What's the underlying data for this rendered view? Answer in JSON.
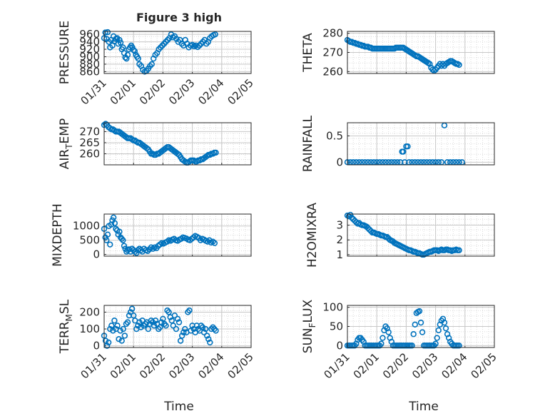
{
  "figure": {
    "title": "Figure 3 high",
    "xlabel": "Time"
  },
  "chart_data": [
    {
      "type": "scatter",
      "panel": "pressure",
      "ylabel": "PRESSURE",
      "yticks": [
        "960",
        "940",
        "920",
        "900",
        "880",
        "860"
      ],
      "ylim": [
        855,
        968
      ],
      "xlim": [
        0,
        5
      ],
      "xticks": [
        "01/31",
        "02/01",
        "02/02",
        "02/03",
        "02/04",
        "02/05"
      ],
      "x": [
        0.0,
        0.04,
        0.08,
        0.12,
        0.16,
        0.2,
        0.24,
        0.28,
        0.32,
        0.36,
        0.4,
        0.44,
        0.48,
        0.52,
        0.56,
        0.6,
        0.64,
        0.68,
        0.72,
        0.76,
        0.8,
        0.84,
        0.88,
        0.92,
        0.96,
        1.0,
        1.04,
        1.08,
        1.12,
        1.16,
        1.2,
        1.26,
        1.32,
        1.38,
        1.44,
        1.5,
        1.56,
        1.62,
        1.68,
        1.74,
        1.8,
        1.86,
        1.92,
        1.98,
        2.04,
        2.1,
        2.16,
        2.22,
        2.28,
        2.34,
        2.4,
        2.46,
        2.52,
        2.58,
        2.64,
        2.7,
        2.76,
        2.82,
        2.88,
        2.94,
        3.0,
        3.06,
        3.12,
        3.18,
        3.24,
        3.3,
        3.36,
        3.42,
        3.48,
        3.54,
        3.6,
        3.66,
        3.72,
        3.78
      ],
      "y": [
        950,
        965,
        948,
        966,
        940,
        925,
        945,
        930,
        955,
        942,
        948,
        950,
        935,
        945,
        938,
        920,
        925,
        910,
        898,
        895,
        905,
        920,
        925,
        930,
        925,
        918,
        915,
        905,
        900,
        895,
        880,
        875,
        865,
        860,
        862,
        868,
        875,
        880,
        895,
        905,
        910,
        920,
        925,
        930,
        935,
        940,
        945,
        950,
        960,
        952,
        955,
        948,
        940,
        945,
        935,
        930,
        945,
        935,
        925,
        930,
        932,
        928,
        930,
        926,
        930,
        935,
        940,
        945,
        935,
        940,
        950,
        955,
        958,
        960
      ]
    },
    {
      "type": "scatter",
      "panel": "theta",
      "ylabel": "THETA",
      "yticks": [
        "280",
        "270",
        "260"
      ],
      "ylim": [
        259,
        281
      ],
      "xlim": [
        0,
        5
      ],
      "x": [
        0.0,
        0.05,
        0.1,
        0.15,
        0.2,
        0.25,
        0.3,
        0.35,
        0.4,
        0.45,
        0.5,
        0.55,
        0.6,
        0.65,
        0.7,
        0.75,
        0.8,
        0.85,
        0.9,
        0.95,
        1.0,
        1.05,
        1.1,
        1.15,
        1.2,
        1.25,
        1.3,
        1.35,
        1.4,
        1.45,
        1.5,
        1.55,
        1.6,
        1.65,
        1.7,
        1.75,
        1.8,
        1.85,
        1.9,
        1.95,
        2.0,
        2.05,
        2.1,
        2.15,
        2.2,
        2.25,
        2.3,
        2.35,
        2.4,
        2.45,
        2.5,
        2.55,
        2.6,
        2.65,
        2.7,
        2.75,
        2.8,
        2.85,
        2.9,
        2.95,
        3.0,
        3.05,
        3.1,
        3.15,
        3.2,
        3.25,
        3.3,
        3.35,
        3.4,
        3.45,
        3.5,
        3.55,
        3.6,
        3.65,
        3.7,
        3.75,
        3.8
      ],
      "y": [
        276.5,
        276,
        275.5,
        275.5,
        275,
        275,
        274.5,
        274.5,
        274,
        274,
        273.5,
        273.5,
        273,
        273,
        273,
        272.5,
        272.5,
        272,
        272,
        272,
        272,
        272,
        272,
        272,
        272,
        272,
        272,
        272,
        272,
        272,
        272,
        272,
        272,
        272.5,
        272.5,
        272.5,
        272.5,
        272.5,
        272.5,
        272,
        271.5,
        271,
        270.5,
        270,
        269.5,
        269,
        268.5,
        268,
        268,
        267.5,
        267,
        266.5,
        266,
        265.5,
        265,
        264.5,
        264,
        262,
        261,
        260.5,
        261,
        262,
        263,
        264,
        263,
        264,
        263,
        264,
        264.5,
        265,
        265.5,
        265.5,
        265,
        264.5,
        264,
        264,
        263.5
      ]
    },
    {
      "type": "scatter",
      "panel": "air_temp",
      "ylabel_main": "AIR",
      "ylabel_sub": "T",
      "ylabel_tail": "EMP",
      "yticks": [
        "270",
        "265",
        "260"
      ],
      "ylim": [
        255,
        274
      ],
      "xlim": [
        0,
        5
      ],
      "x": [
        0.0,
        0.05,
        0.1,
        0.15,
        0.2,
        0.25,
        0.3,
        0.35,
        0.4,
        0.45,
        0.5,
        0.55,
        0.6,
        0.65,
        0.7,
        0.75,
        0.8,
        0.85,
        0.9,
        0.95,
        1.0,
        1.05,
        1.1,
        1.15,
        1.2,
        1.25,
        1.3,
        1.35,
        1.4,
        1.45,
        1.5,
        1.55,
        1.6,
        1.65,
        1.7,
        1.75,
        1.8,
        1.85,
        1.9,
        1.95,
        2.0,
        2.05,
        2.1,
        2.15,
        2.2,
        2.25,
        2.3,
        2.35,
        2.4,
        2.45,
        2.5,
        2.55,
        2.6,
        2.65,
        2.7,
        2.75,
        2.8,
        2.85,
        2.9,
        2.95,
        3.0,
        3.05,
        3.1,
        3.15,
        3.2,
        3.25,
        3.3,
        3.35,
        3.4,
        3.45,
        3.5,
        3.55,
        3.6,
        3.65,
        3.7,
        3.75,
        3.8
      ],
      "y": [
        273,
        273.5,
        273,
        272,
        271.5,
        271,
        271,
        270.5,
        270,
        270,
        270,
        269.5,
        269,
        268.5,
        268,
        267.5,
        267,
        267,
        267,
        266.5,
        266,
        266,
        265.5,
        265,
        265,
        264.5,
        264,
        263.5,
        263,
        262.5,
        262,
        261,
        260,
        260,
        259.5,
        259.5,
        260,
        260,
        260.5,
        261,
        261.5,
        262,
        262.5,
        263,
        263,
        262.5,
        262,
        261.5,
        261,
        260.5,
        260,
        259.5,
        258.5,
        257.5,
        257,
        256.5,
        256,
        256,
        256.5,
        257,
        257,
        257,
        256.5,
        256.5,
        257,
        257,
        257.5,
        257.5,
        258,
        258.5,
        259,
        259.5,
        259.5,
        260,
        260,
        260.5,
        260.5
      ]
    },
    {
      "type": "scatter",
      "panel": "rainfall",
      "ylabel": "RAINFALL",
      "yticks": [
        "0.5",
        "0"
      ],
      "ylim": [
        -0.05,
        0.75
      ],
      "xlim": [
        0,
        5
      ],
      "x": [
        0.0,
        0.1,
        0.2,
        0.3,
        0.4,
        0.5,
        0.6,
        0.7,
        0.8,
        0.9,
        1.0,
        1.1,
        1.2,
        1.3,
        1.4,
        1.5,
        1.6,
        1.7,
        1.8,
        1.86,
        1.9,
        1.95,
        2.0,
        2.05,
        2.1,
        2.2,
        2.3,
        2.4,
        2.5,
        2.6,
        2.7,
        2.8,
        2.9,
        3.0,
        3.1,
        3.2,
        3.3,
        3.4,
        3.5,
        3.6,
        3.7,
        3.8,
        3.9
      ],
      "y": [
        0,
        0,
        0,
        0,
        0,
        0,
        0,
        0,
        0,
        0,
        0,
        0,
        0,
        0,
        0,
        0,
        0,
        0,
        0,
        0.2,
        0.2,
        0,
        0.3,
        0.3,
        0,
        0,
        0,
        0,
        0,
        0,
        0,
        0,
        0,
        0,
        0,
        0,
        0.7,
        0,
        0,
        0,
        0,
        0,
        0
      ]
    },
    {
      "type": "scatter",
      "panel": "mixdepth",
      "ylabel": "MIXDEPTH",
      "yticks": [
        "1000",
        "500",
        "0"
      ],
      "ylim": [
        -60,
        1420
      ],
      "xlim": [
        0,
        5
      ],
      "x": [
        0.0,
        0.04,
        0.08,
        0.12,
        0.16,
        0.2,
        0.24,
        0.28,
        0.32,
        0.36,
        0.4,
        0.44,
        0.48,
        0.52,
        0.56,
        0.6,
        0.64,
        0.68,
        0.72,
        0.76,
        0.8,
        0.85,
        0.9,
        0.95,
        1.0,
        1.05,
        1.1,
        1.15,
        1.2,
        1.25,
        1.3,
        1.36,
        1.42,
        1.48,
        1.54,
        1.6,
        1.66,
        1.72,
        1.78,
        1.84,
        1.9,
        1.96,
        2.02,
        2.08,
        2.14,
        2.2,
        2.26,
        2.32,
        2.38,
        2.44,
        2.5,
        2.56,
        2.62,
        2.68,
        2.74,
        2.8,
        2.86,
        2.92,
        2.98,
        3.04,
        3.1,
        3.16,
        3.22,
        3.28,
        3.34,
        3.4,
        3.46,
        3.52,
        3.58,
        3.64,
        3.7,
        3.76
      ],
      "y": [
        900,
        600,
        500,
        700,
        1000,
        350,
        1050,
        1200,
        1300,
        1100,
        900,
        850,
        700,
        800,
        600,
        550,
        500,
        300,
        200,
        100,
        150,
        180,
        100,
        200,
        150,
        100,
        50,
        150,
        200,
        150,
        100,
        200,
        150,
        120,
        180,
        250,
        200,
        250,
        220,
        300,
        350,
        400,
        380,
        420,
        450,
        500,
        480,
        520,
        550,
        500,
        480,
        520,
        550,
        600,
        580,
        560,
        520,
        500,
        550,
        600,
        650,
        620,
        580,
        500,
        550,
        520,
        480,
        450,
        500,
        420,
        450,
        400
      ]
    },
    {
      "type": "scatter",
      "panel": "h2omixra",
      "ylabel": "H2OMIXRA",
      "yticks": [
        "3",
        "2",
        "1"
      ],
      "ylim": [
        0.9,
        3.75
      ],
      "xlim": [
        0,
        5
      ],
      "x": [
        0.0,
        0.05,
        0.1,
        0.15,
        0.2,
        0.25,
        0.3,
        0.35,
        0.4,
        0.45,
        0.5,
        0.55,
        0.6,
        0.65,
        0.7,
        0.75,
        0.8,
        0.85,
        0.9,
        0.95,
        1.0,
        1.05,
        1.1,
        1.15,
        1.2,
        1.25,
        1.3,
        1.35,
        1.4,
        1.45,
        1.5,
        1.55,
        1.6,
        1.65,
        1.7,
        1.75,
        1.8,
        1.85,
        1.9,
        1.95,
        2.0,
        2.05,
        2.1,
        2.15,
        2.2,
        2.25,
        2.3,
        2.35,
        2.4,
        2.45,
        2.5,
        2.55,
        2.6,
        2.65,
        2.7,
        2.75,
        2.8,
        2.85,
        2.9,
        2.95,
        3.0,
        3.05,
        3.1,
        3.15,
        3.2,
        3.25,
        3.3,
        3.35,
        3.4,
        3.45,
        3.5,
        3.55,
        3.6,
        3.65,
        3.7,
        3.75,
        3.8
      ],
      "y": [
        3.65,
        3.6,
        3.7,
        3.5,
        3.4,
        3.3,
        3.2,
        3.1,
        3.15,
        3.05,
        3.0,
        3.0,
        2.95,
        2.9,
        2.8,
        2.7,
        2.6,
        2.5,
        2.5,
        2.45,
        2.4,
        2.4,
        2.35,
        2.3,
        2.3,
        2.25,
        2.2,
        2.2,
        2.1,
        2.0,
        1.95,
        1.9,
        1.8,
        1.75,
        1.7,
        1.65,
        1.6,
        1.55,
        1.5,
        1.45,
        1.4,
        1.35,
        1.3,
        1.3,
        1.25,
        1.2,
        1.2,
        1.15,
        1.1,
        1.1,
        1.05,
        1.0,
        1.0,
        1.05,
        1.1,
        1.15,
        1.2,
        1.2,
        1.25,
        1.3,
        1.3,
        1.3,
        1.25,
        1.3,
        1.35,
        1.3,
        1.3,
        1.35,
        1.35,
        1.3,
        1.3,
        1.25,
        1.3,
        1.3,
        1.35,
        1.3,
        1.3
      ]
    },
    {
      "type": "scatter",
      "panel": "terr_msl",
      "ylabel_main": "TERR",
      "ylabel_sub": "M",
      "ylabel_tail": "SL",
      "yticks": [
        "200",
        "100",
        "0"
      ],
      "ylim": [
        -10,
        240
      ],
      "xlim": [
        0,
        5
      ],
      "xticks": [
        "01/31",
        "02/01",
        "02/02",
        "02/03",
        "02/04",
        "02/05"
      ],
      "x": [
        0.0,
        0.05,
        0.1,
        0.15,
        0.2,
        0.25,
        0.3,
        0.35,
        0.4,
        0.45,
        0.5,
        0.55,
        0.6,
        0.65,
        0.7,
        0.75,
        0.8,
        0.85,
        0.9,
        0.95,
        1.0,
        1.05,
        1.1,
        1.15,
        1.2,
        1.25,
        1.3,
        1.35,
        1.4,
        1.45,
        1.5,
        1.55,
        1.6,
        1.65,
        1.7,
        1.75,
        1.8,
        1.85,
        1.9,
        1.95,
        2.0,
        2.05,
        2.1,
        2.15,
        2.2,
        2.25,
        2.3,
        2.35,
        2.4,
        2.45,
        2.5,
        2.55,
        2.6,
        2.65,
        2.7,
        2.75,
        2.8,
        2.85,
        2.9,
        2.95,
        3.0,
        3.05,
        3.1,
        3.15,
        3.2,
        3.25,
        3.3,
        3.35,
        3.4,
        3.45,
        3.5,
        3.55,
        3.6,
        3.65,
        3.7,
        3.75,
        3.8
      ],
      "y": [
        60,
        30,
        0,
        20,
        100,
        120,
        90,
        150,
        100,
        120,
        40,
        90,
        30,
        100,
        60,
        130,
        140,
        180,
        200,
        220,
        180,
        150,
        100,
        120,
        140,
        110,
        150,
        120,
        130,
        140,
        100,
        130,
        150,
        140,
        120,
        150,
        130,
        100,
        110,
        140,
        160,
        130,
        120,
        210,
        200,
        170,
        150,
        120,
        180,
        100,
        160,
        140,
        30,
        60,
        80,
        100,
        80,
        200,
        210,
        90,
        120,
        100,
        80,
        120,
        100,
        90,
        120,
        110,
        80,
        100,
        60,
        40,
        20,
        100,
        110,
        100,
        90
      ]
    },
    {
      "type": "scatter",
      "panel": "sun_flux",
      "ylabel_main": "SUN",
      "ylabel_sub": "F",
      "ylabel_tail": "LUX",
      "yticks": [
        "100",
        "50",
        "0"
      ],
      "ylim": [
        -5,
        105
      ],
      "xlim": [
        0,
        5
      ],
      "xticks": [
        "01/31",
        "02/01",
        "02/02",
        "02/03",
        "02/04",
        "02/05"
      ],
      "x": [
        0.0,
        0.05,
        0.1,
        0.15,
        0.2,
        0.25,
        0.3,
        0.35,
        0.4,
        0.45,
        0.5,
        0.55,
        0.6,
        0.65,
        0.7,
        0.75,
        0.8,
        0.85,
        0.9,
        0.95,
        1.0,
        1.05,
        1.1,
        1.15,
        1.2,
        1.25,
        1.3,
        1.35,
        1.4,
        1.45,
        1.5,
        1.55,
        1.6,
        1.65,
        1.7,
        1.75,
        1.8,
        1.85,
        1.9,
        1.95,
        2.0,
        2.05,
        2.1,
        2.15,
        2.2,
        2.25,
        2.3,
        2.35,
        2.4,
        2.45,
        2.5,
        2.55,
        2.6,
        2.65,
        2.7,
        2.75,
        2.8,
        2.85,
        2.9,
        2.95,
        3.0,
        3.05,
        3.1,
        3.15,
        3.2,
        3.25,
        3.3,
        3.35,
        3.4,
        3.45,
        3.5,
        3.55,
        3.6,
        3.65,
        3.7,
        3.75,
        3.8
      ],
      "y": [
        0,
        0,
        0,
        0,
        0,
        0,
        5,
        15,
        20,
        20,
        15,
        10,
        0,
        0,
        0,
        0,
        0,
        0,
        0,
        0,
        0,
        0,
        0,
        5,
        20,
        40,
        50,
        45,
        35,
        20,
        10,
        0,
        0,
        0,
        0,
        0,
        0,
        0,
        0,
        0,
        0,
        0,
        0,
        0,
        0,
        30,
        55,
        85,
        88,
        90,
        60,
        35,
        0,
        0,
        0,
        0,
        0,
        0,
        0,
        0,
        5,
        20,
        40,
        55,
        65,
        70,
        60,
        45,
        30,
        20,
        10,
        5,
        0,
        0,
        0,
        0,
        0
      ]
    }
  ]
}
